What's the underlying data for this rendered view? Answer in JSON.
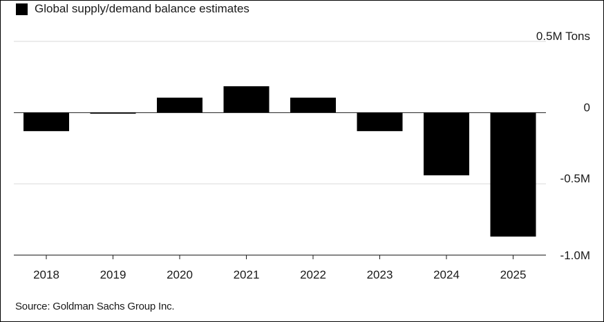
{
  "chart_data": {
    "type": "bar",
    "legend": [
      {
        "label": "Global supply/demand balance estimates",
        "color": "#000000"
      }
    ],
    "legend_placement": "top-left",
    "categories": [
      "2018",
      "2019",
      "2020",
      "2021",
      "2022",
      "2023",
      "2024",
      "2025"
    ],
    "series": [
      {
        "name": "Global supply/demand balance estimates",
        "values": [
          -0.13,
          -0.005,
          0.105,
          0.185,
          0.105,
          -0.13,
          -0.44,
          -0.87
        ]
      }
    ],
    "y_ticks": [
      {
        "value": 0.5,
        "label": "0.5M Tons"
      },
      {
        "value": 0,
        "label": "0"
      },
      {
        "value": -0.5,
        "label": "-0.5M"
      },
      {
        "value": -1.0,
        "label": "-1.0M"
      }
    ],
    "ylim": [
      -1.0,
      0.5
    ],
    "grid": true,
    "y_axis_side": "right",
    "bar_color": "#000000",
    "grid_color": "#e6e6e6"
  },
  "source": "Source: Goldman Sachs Group Inc."
}
